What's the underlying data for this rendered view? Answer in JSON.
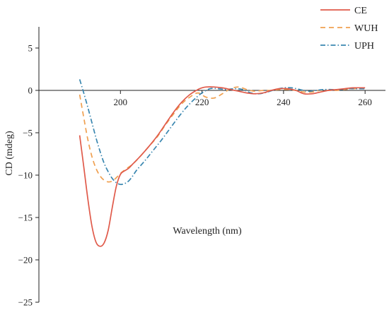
{
  "chart_data": {
    "type": "line",
    "xlabel": "Wavelength (nm)",
    "ylabel": "CD (mdeg)",
    "xlim": [
      180,
      265
    ],
    "ylim": [
      -25,
      7.5
    ],
    "x_ticks": [
      200,
      220,
      240,
      260
    ],
    "y_ticks": [
      5,
      0,
      -5,
      -10,
      -15,
      -20,
      -25
    ],
    "x_tick_labels": [
      "200",
      "220",
      "240",
      "260"
    ],
    "y_tick_labels": [
      "5",
      "0",
      "−5",
      "−10",
      "−15",
      "−20",
      "−25"
    ],
    "grid": false,
    "legend_position": "top-right",
    "series": [
      {
        "name": "CE",
        "color": "#e05a4a",
        "dash": "solid",
        "points": [
          [
            190,
            -5.3
          ],
          [
            191,
            -9
          ],
          [
            192,
            -12.8
          ],
          [
            193,
            -16
          ],
          [
            194,
            -17.9
          ],
          [
            195,
            -18.4
          ],
          [
            196,
            -18
          ],
          [
            197,
            -16.5
          ],
          [
            198,
            -13.8
          ],
          [
            199,
            -11.3
          ],
          [
            200,
            -9.9
          ],
          [
            201,
            -9.5
          ],
          [
            202,
            -9.2
          ],
          [
            203,
            -8.7
          ],
          [
            205,
            -7.7
          ],
          [
            207,
            -6.6
          ],
          [
            209,
            -5.4
          ],
          [
            211,
            -4
          ],
          [
            213,
            -2.6
          ],
          [
            215,
            -1.4
          ],
          [
            217,
            -0.5
          ],
          [
            219,
            0.1
          ],
          [
            220,
            0.3
          ],
          [
            221,
            0.4
          ],
          [
            223,
            0.4
          ],
          [
            225,
            0.3
          ],
          [
            227,
            0.1
          ],
          [
            229,
            -0.1
          ],
          [
            231,
            -0.3
          ],
          [
            233,
            -0.4
          ],
          [
            235,
            -0.3
          ],
          [
            237,
            0
          ],
          [
            239,
            0.2
          ],
          [
            241,
            0.2
          ],
          [
            243,
            0
          ],
          [
            245,
            -0.4
          ],
          [
            247,
            -0.4
          ],
          [
            249,
            -0.2
          ],
          [
            251,
            0
          ],
          [
            253,
            0.1
          ],
          [
            255,
            0.2
          ],
          [
            257,
            0.3
          ],
          [
            260,
            0.3
          ]
        ]
      },
      {
        "name": "WUH",
        "color": "#f0a050",
        "dash": "dashed",
        "points": [
          [
            190,
            -0.5
          ],
          [
            191,
            -3.2
          ],
          [
            192,
            -5.8
          ],
          [
            193,
            -7.8
          ],
          [
            194,
            -9.2
          ],
          [
            195,
            -10.1
          ],
          [
            196,
            -10.6
          ],
          [
            197,
            -10.8
          ],
          [
            198,
            -10.7
          ],
          [
            199,
            -10.3
          ],
          [
            200,
            -9.8
          ],
          [
            201,
            -9.4
          ],
          [
            203,
            -8.7
          ],
          [
            205,
            -7.7
          ],
          [
            207,
            -6.6
          ],
          [
            209,
            -5.5
          ],
          [
            211,
            -4.1
          ],
          [
            213,
            -2.8
          ],
          [
            215,
            -1.6
          ],
          [
            217,
            -0.8
          ],
          [
            219,
            -0.3
          ],
          [
            221,
            -0.8
          ],
          [
            223,
            -0.9
          ],
          [
            225,
            -0.4
          ],
          [
            227,
            0.2
          ],
          [
            229,
            0.4
          ],
          [
            231,
            0.1
          ],
          [
            233,
            -0.1
          ],
          [
            235,
            0
          ],
          [
            237,
            0
          ],
          [
            239,
            0.1
          ],
          [
            241,
            0.1
          ],
          [
            243,
            0
          ],
          [
            245,
            -0.2
          ],
          [
            247,
            -0.2
          ],
          [
            249,
            0
          ],
          [
            251,
            0
          ],
          [
            253,
            0
          ],
          [
            255,
            0.1
          ],
          [
            257,
            0.2
          ],
          [
            260,
            0.3
          ]
        ]
      },
      {
        "name": "UPH",
        "color": "#3a87b0",
        "dash": "dashdot",
        "points": [
          [
            190,
            1.3
          ],
          [
            191,
            -0.3
          ],
          [
            192,
            -2
          ],
          [
            193,
            -3.8
          ],
          [
            194,
            -5.6
          ],
          [
            195,
            -7.2
          ],
          [
            196,
            -8.6
          ],
          [
            197,
            -9.6
          ],
          [
            198,
            -10.4
          ],
          [
            199,
            -10.9
          ],
          [
            200,
            -11.1
          ],
          [
            201,
            -11
          ],
          [
            202,
            -10.7
          ],
          [
            203,
            -10.1
          ],
          [
            204,
            -9.4
          ],
          [
            206,
            -8.3
          ],
          [
            208,
            -7.1
          ],
          [
            210,
            -5.9
          ],
          [
            212,
            -4.6
          ],
          [
            214,
            -3.3
          ],
          [
            216,
            -2.1
          ],
          [
            218,
            -1.1
          ],
          [
            220,
            -0.3
          ],
          [
            222,
            0.2
          ],
          [
            224,
            0.2
          ],
          [
            226,
            0.1
          ],
          [
            228,
            0.2
          ],
          [
            230,
            0.1
          ],
          [
            232,
            -0.3
          ],
          [
            234,
            -0.4
          ],
          [
            236,
            -0.2
          ],
          [
            238,
            0.1
          ],
          [
            240,
            0.3
          ],
          [
            242,
            0.3
          ],
          [
            244,
            0.1
          ],
          [
            246,
            -0.1
          ],
          [
            248,
            0
          ],
          [
            250,
            0.1
          ],
          [
            252,
            0.1
          ],
          [
            254,
            0.1
          ],
          [
            256,
            0.2
          ],
          [
            258,
            0.2
          ],
          [
            260,
            0.2
          ]
        ]
      }
    ]
  }
}
